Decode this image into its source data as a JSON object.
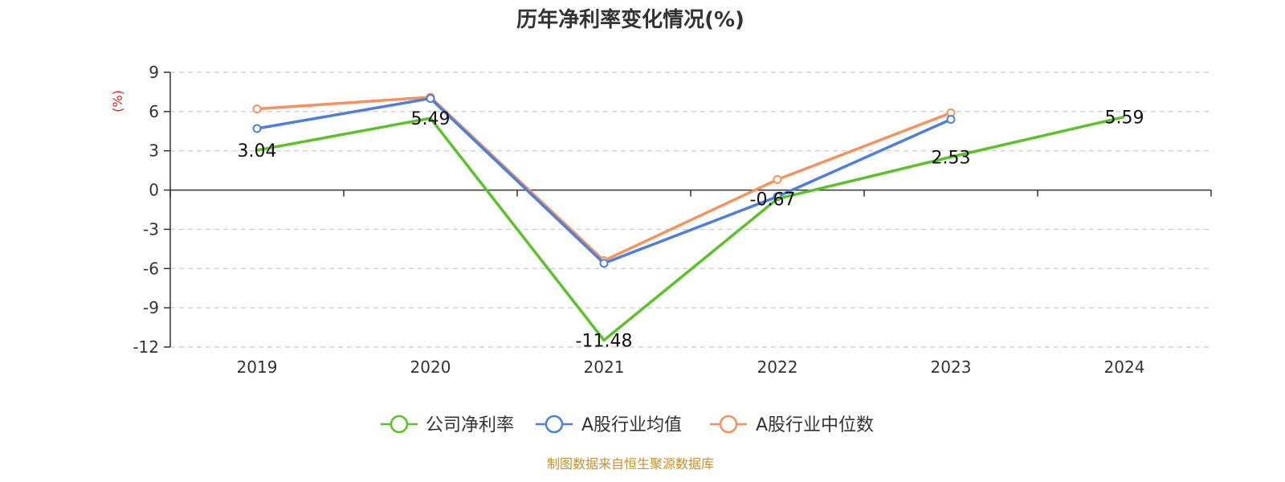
{
  "chart_data": {
    "type": "line",
    "title": "历年净利率变化情况(%)",
    "ylabel": "(%)",
    "categories": [
      "2019",
      "2020",
      "2021",
      "2022",
      "2023",
      "2024"
    ],
    "ylim": [
      -12,
      9
    ],
    "yticks": [
      9,
      6,
      3,
      0,
      -3,
      -6,
      -9,
      -12
    ],
    "grid": true,
    "legend_position": "bottom",
    "series": [
      {
        "name": "公司净利率",
        "color": "#5cc22a",
        "values": [
          3.04,
          5.49,
          -11.48,
          -0.67,
          2.53,
          5.59
        ],
        "labels": [
          "3.04",
          "5.49",
          "-11.48",
          "-0.67",
          "2.53",
          "5.59"
        ]
      },
      {
        "name": "A股行业均值",
        "color": "#4e7fdb",
        "values": [
          4.7,
          7.0,
          -5.6,
          -0.5,
          5.4,
          null
        ]
      },
      {
        "name": "A股行业中位数",
        "color": "#f5925f",
        "values": [
          6.2,
          7.1,
          -5.4,
          0.8,
          5.9,
          null
        ]
      }
    ]
  },
  "source": "制图数据来自恒生聚源数据库"
}
